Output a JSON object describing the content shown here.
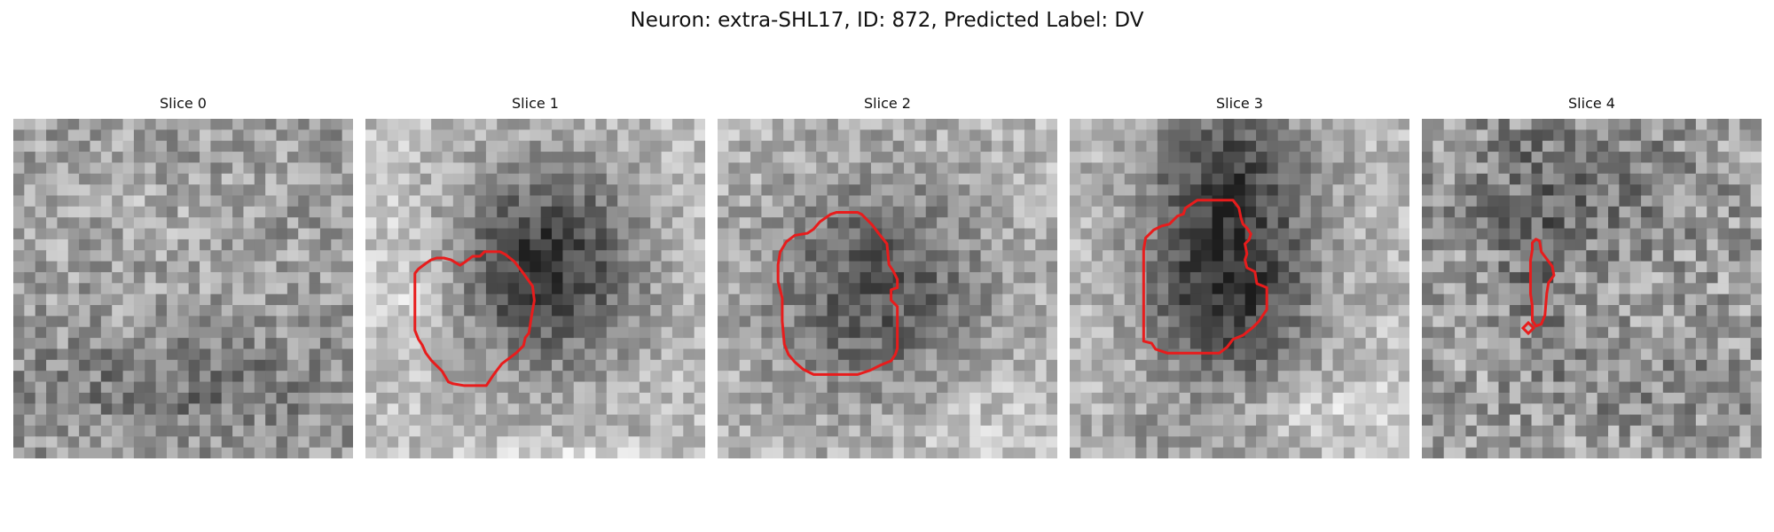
{
  "figure": {
    "suptitle": "Neuron: extra-SHL17, ID: 872, Predicted Label: DV",
    "contour_color": "#e81c1c",
    "background": "#ffffff"
  },
  "panels": [
    {
      "title": "Slice 0",
      "image_description": "noisy grayscale patch, darker band near lower-middle",
      "contour": null
    },
    {
      "title": "Slice 1",
      "image_description": "dark roughly circular cell body centered slightly right",
      "contour": "red outline"
    },
    {
      "title": "Slice 2",
      "image_description": "darker circular region in center with mixed noise",
      "contour": "red outline"
    },
    {
      "title": "Slice 3",
      "image_description": "very dark cell body in center, bright streak below",
      "contour": "red outline"
    },
    {
      "title": "Slice 4",
      "image_description": "noisy patch with a small elongated dark region",
      "contour": "small red outline"
    }
  ]
}
